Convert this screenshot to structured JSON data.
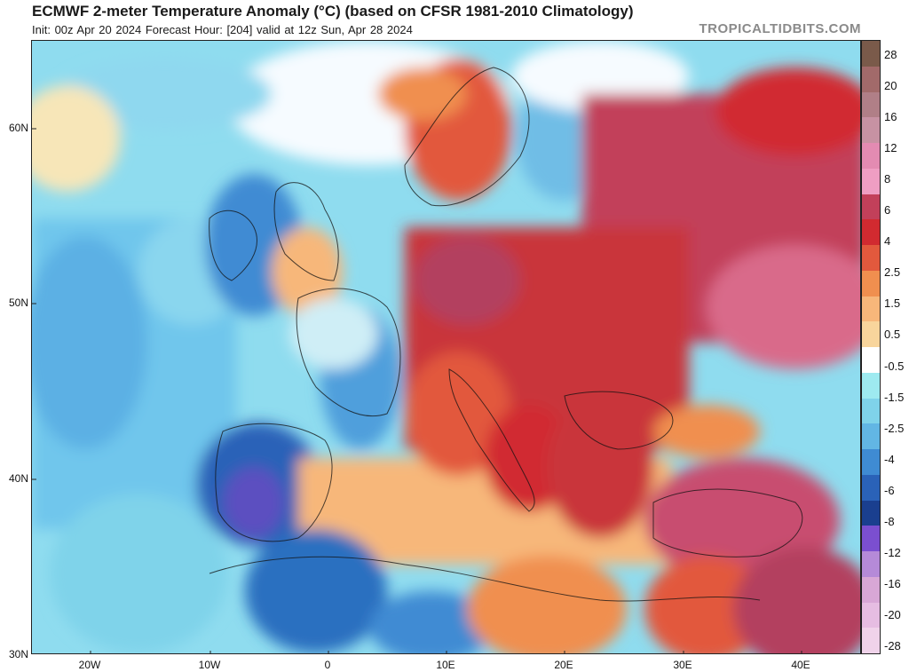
{
  "header": {
    "title": "ECMWF 2-meter Temperature Anomaly (°C) (based on CFSR 1981-2010 Climatology)",
    "subtitle": "Init: 00z Apr 20 2024   Forecast Hour: [204]   valid at 12z Sun, Apr 28 2024",
    "brand": "TROPICALTIDBITS.COM"
  },
  "map": {
    "lat_labels": [
      "60N",
      "50N",
      "40N",
      "30N"
    ],
    "lon_labels": [
      "20W",
      "10W",
      "0",
      "10E",
      "20E",
      "30E",
      "40E"
    ]
  },
  "colorbar": {
    "labels": [
      "28",
      "20",
      "16",
      "12",
      "8",
      "6",
      "4",
      "2.5",
      "1.5",
      "0.5",
      "-0.5",
      "-1.5",
      "-2.5",
      "-4",
      "-6",
      "-8",
      "-12",
      "-16",
      "-20",
      "-28"
    ],
    "colors": [
      "#7a5a4a",
      "#a26a6a",
      "#b07f87",
      "#c792a3",
      "#e38bb2",
      "#ef9ec3",
      "#c2405a",
      "#d12a30",
      "#e2593d",
      "#f08f4f",
      "#f7b77a",
      "#f8d59c",
      "#ffffff",
      "#9eeaf0",
      "#7fd3ea",
      "#62b6e4",
      "#3f8bd3",
      "#2a62b8",
      "#1a3f8f",
      "#7b4fd0",
      "#b58ad8",
      "#d8a7d6",
      "#e6bde2",
      "#f0d3ea"
    ]
  }
}
